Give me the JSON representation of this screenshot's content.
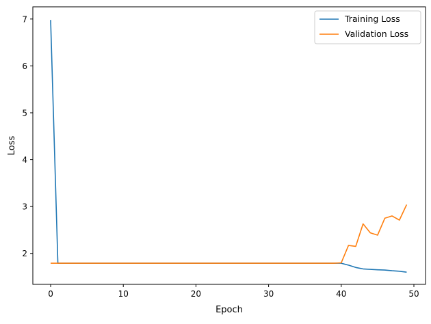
{
  "chart_data": {
    "type": "line",
    "title": "",
    "xlabel": "Epoch",
    "ylabel": "Loss",
    "xlim": [
      -2.45,
      51.6
    ],
    "ylim": [
      1.34,
      7.26
    ],
    "xticks": [
      0,
      10,
      20,
      30,
      40,
      50
    ],
    "yticks": [
      2,
      3,
      4,
      5,
      6,
      7
    ],
    "grid": false,
    "legend_position": "top-right",
    "x": [
      0,
      1,
      2,
      3,
      4,
      5,
      6,
      7,
      8,
      9,
      10,
      11,
      12,
      13,
      14,
      15,
      16,
      17,
      18,
      19,
      20,
      21,
      22,
      23,
      24,
      25,
      26,
      27,
      28,
      29,
      30,
      31,
      32,
      33,
      34,
      35,
      36,
      37,
      38,
      39,
      40,
      41,
      42,
      43,
      44,
      45,
      46,
      47,
      48,
      49
    ],
    "series": [
      {
        "name": "Training Loss",
        "color": "#1f77b4",
        "values": [
          6.98,
          1.79,
          1.79,
          1.79,
          1.79,
          1.79,
          1.79,
          1.79,
          1.79,
          1.79,
          1.79,
          1.79,
          1.79,
          1.79,
          1.79,
          1.79,
          1.79,
          1.79,
          1.79,
          1.79,
          1.79,
          1.79,
          1.79,
          1.79,
          1.79,
          1.79,
          1.79,
          1.79,
          1.79,
          1.79,
          1.79,
          1.79,
          1.79,
          1.79,
          1.79,
          1.79,
          1.79,
          1.79,
          1.79,
          1.79,
          1.79,
          1.75,
          1.7,
          1.67,
          1.66,
          1.65,
          1.645,
          1.63,
          1.62,
          1.6
        ]
      },
      {
        "name": "Validation Loss",
        "color": "#ff7f0e",
        "values": [
          1.79,
          1.79,
          1.79,
          1.79,
          1.79,
          1.79,
          1.79,
          1.79,
          1.79,
          1.79,
          1.79,
          1.79,
          1.79,
          1.79,
          1.79,
          1.79,
          1.79,
          1.79,
          1.79,
          1.79,
          1.79,
          1.79,
          1.79,
          1.79,
          1.79,
          1.79,
          1.79,
          1.79,
          1.79,
          1.79,
          1.79,
          1.79,
          1.79,
          1.79,
          1.79,
          1.79,
          1.79,
          1.79,
          1.79,
          1.79,
          1.8,
          2.17,
          2.15,
          2.63,
          2.44,
          2.39,
          2.75,
          2.8,
          2.71,
          3.04
        ]
      }
    ]
  }
}
